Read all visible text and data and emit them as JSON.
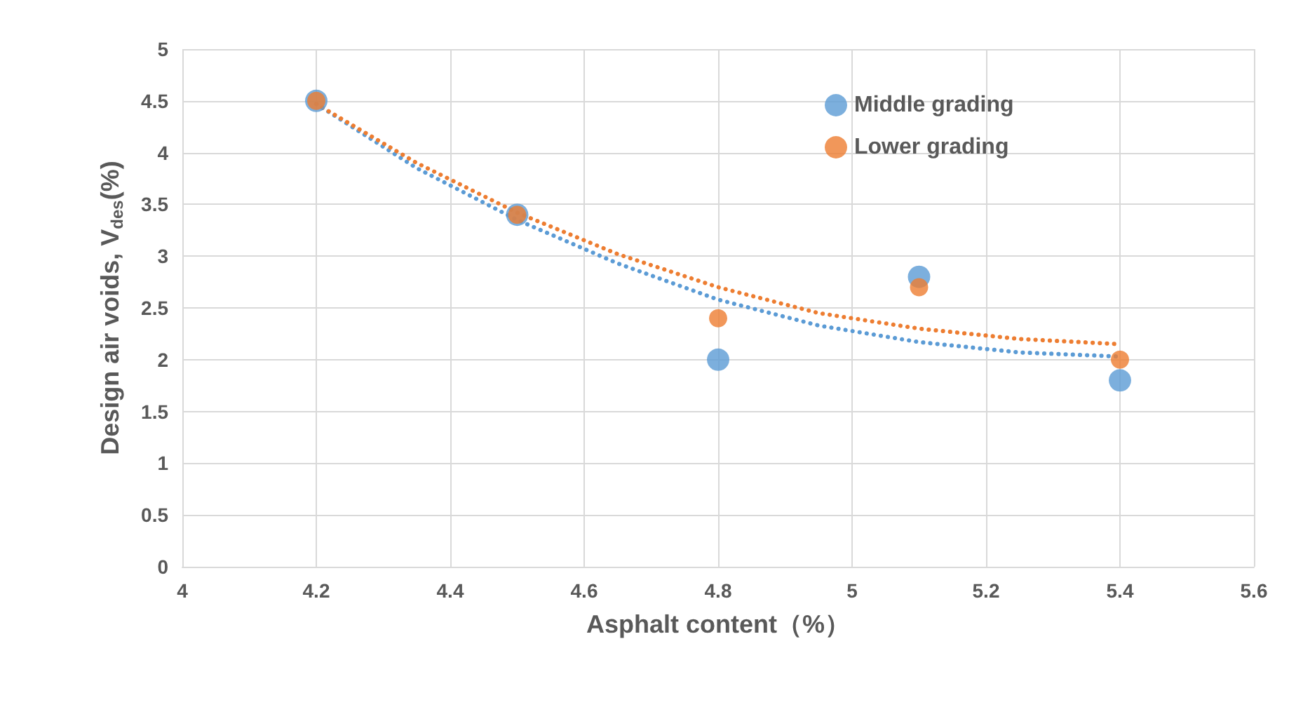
{
  "chart_data": {
    "type": "scatter",
    "xlabel": "Asphalt content（%）",
    "ylabel": "Design air voids, V$_{des}$(%)",
    "xlim": [
      4,
      5.6
    ],
    "xticks": [
      4,
      4.2,
      4.4,
      4.6,
      4.8,
      5,
      5.2,
      5.4,
      5.6
    ],
    "ylim": [
      0,
      5
    ],
    "yticks": [
      0,
      0.5,
      1,
      1.5,
      2,
      2.5,
      3,
      3.5,
      4,
      4.5,
      5
    ],
    "grid": true,
    "legend": "top right",
    "marker": "circle",
    "x": [
      4.2,
      4.5,
      4.8,
      5.1,
      5.4
    ],
    "series": [
      {
        "name": "Middle grading",
        "color": "#5b9bd5",
        "values": [
          4.5,
          3.4,
          2.0,
          2.8,
          1.8
        ]
      },
      {
        "name": "Lower grading",
        "color": "#ed7d31",
        "values": [
          4.5,
          3.4,
          2.4,
          2.7,
          2.0
        ]
      },
      {
        "type": "line",
        "color": "#5b9bd5",
        "line_style": "dotted",
        "marker": "none",
        "x": [
          4.2,
          4.35,
          4.5,
          4.65,
          4.8,
          4.95,
          5.1,
          5.25,
          5.4
        ],
        "values": [
          4.47,
          3.85,
          3.35,
          2.93,
          2.58,
          2.33,
          2.17,
          2.07,
          2.03
        ]
      },
      {
        "type": "line",
        "color": "#ed7d31",
        "line_style": "dotted",
        "marker": "none",
        "x": [
          4.2,
          4.35,
          4.5,
          4.65,
          4.8,
          4.95,
          5.1,
          5.25,
          5.4
        ],
        "values": [
          4.47,
          3.9,
          3.42,
          3.02,
          2.7,
          2.45,
          2.3,
          2.2,
          2.15
        ]
      }
    ]
  }
}
